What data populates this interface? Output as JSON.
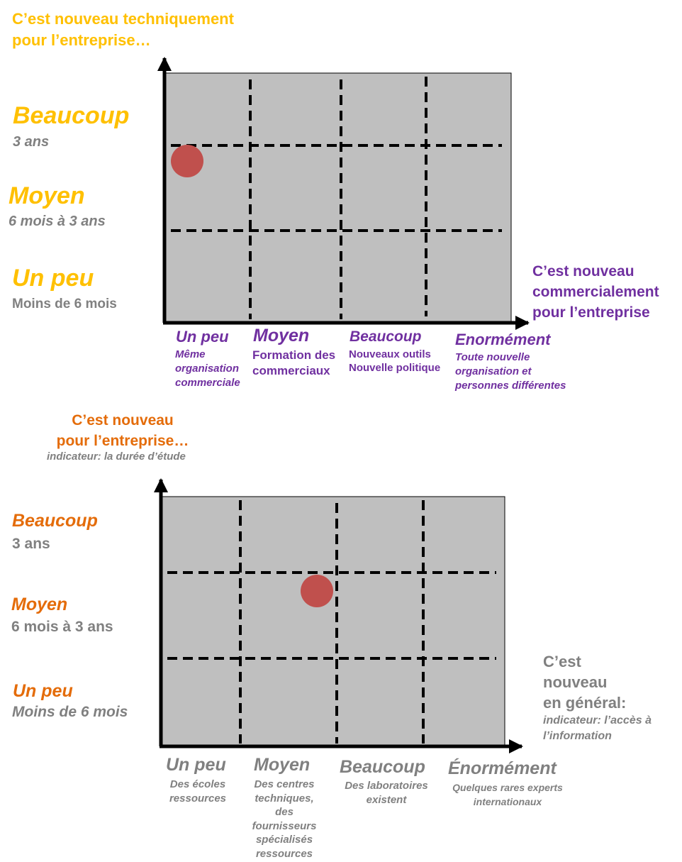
{
  "diagram1": {
    "y_title": "C’est nouveau techniquement\npour l’entreprise…",
    "y_levels": [
      {
        "label": "Beaucoup",
        "sub": "3 ans"
      },
      {
        "label": "Moyen",
        "sub": "6 mois à 3 ans"
      },
      {
        "label": "Un peu",
        "sub": "Moins de 6 mois"
      }
    ],
    "x_title": "C’est nouveau\ncommercialement\npour l’entreprise",
    "x_levels": [
      {
        "label": "Un peu",
        "sub": "Même\norganisation\ncommerciale"
      },
      {
        "label": "Moyen",
        "sub": "Formation des\ncommerciaux"
      },
      {
        "label": "Beaucoup",
        "sub": "Nouveaux outils\nNouvelle politique"
      },
      {
        "label": "Enormément",
        "sub": "Toute nouvelle\norganisation et\npersonnes différentes"
      }
    ],
    "marker": {
      "column": "Un peu",
      "row": "Beaucoup"
    }
  },
  "diagram2": {
    "y_title": "C’est nouveau\npour l’entreprise…",
    "y_indicator": "indicateur: la durée d’étude",
    "y_levels": [
      {
        "label": "Beaucoup",
        "sub": "3 ans"
      },
      {
        "label": "Moyen",
        "sub": "6 mois à 3 ans"
      },
      {
        "label": "Un peu",
        "sub": "Moins de 6 mois"
      }
    ],
    "x_title": "C’est\nnouveau\nen général:",
    "x_indicator": "indicateur: l’accès à\nl’information",
    "x_levels": [
      {
        "label": "Un peu",
        "sub": "Des écoles\nressources"
      },
      {
        "label": "Moyen",
        "sub": "Des centres\ntechniques,\ndes\nfournisseurs\nspécialisés\nressources"
      },
      {
        "label": "Beaucoup",
        "sub": "Des laboratoires\nexistent"
      },
      {
        "label": "Énormément",
        "sub": "Quelques rares experts\ninternationaux"
      }
    ],
    "marker": {
      "column": "Moyen",
      "row": "Moyen / Beaucoup"
    }
  },
  "colors": {
    "gold": "#FFC000",
    "purple": "#7030A0",
    "orange": "#E46C0A",
    "grey_text": "#808080",
    "grid_fill": "#BFBFBF",
    "marker": "#C0504D"
  }
}
